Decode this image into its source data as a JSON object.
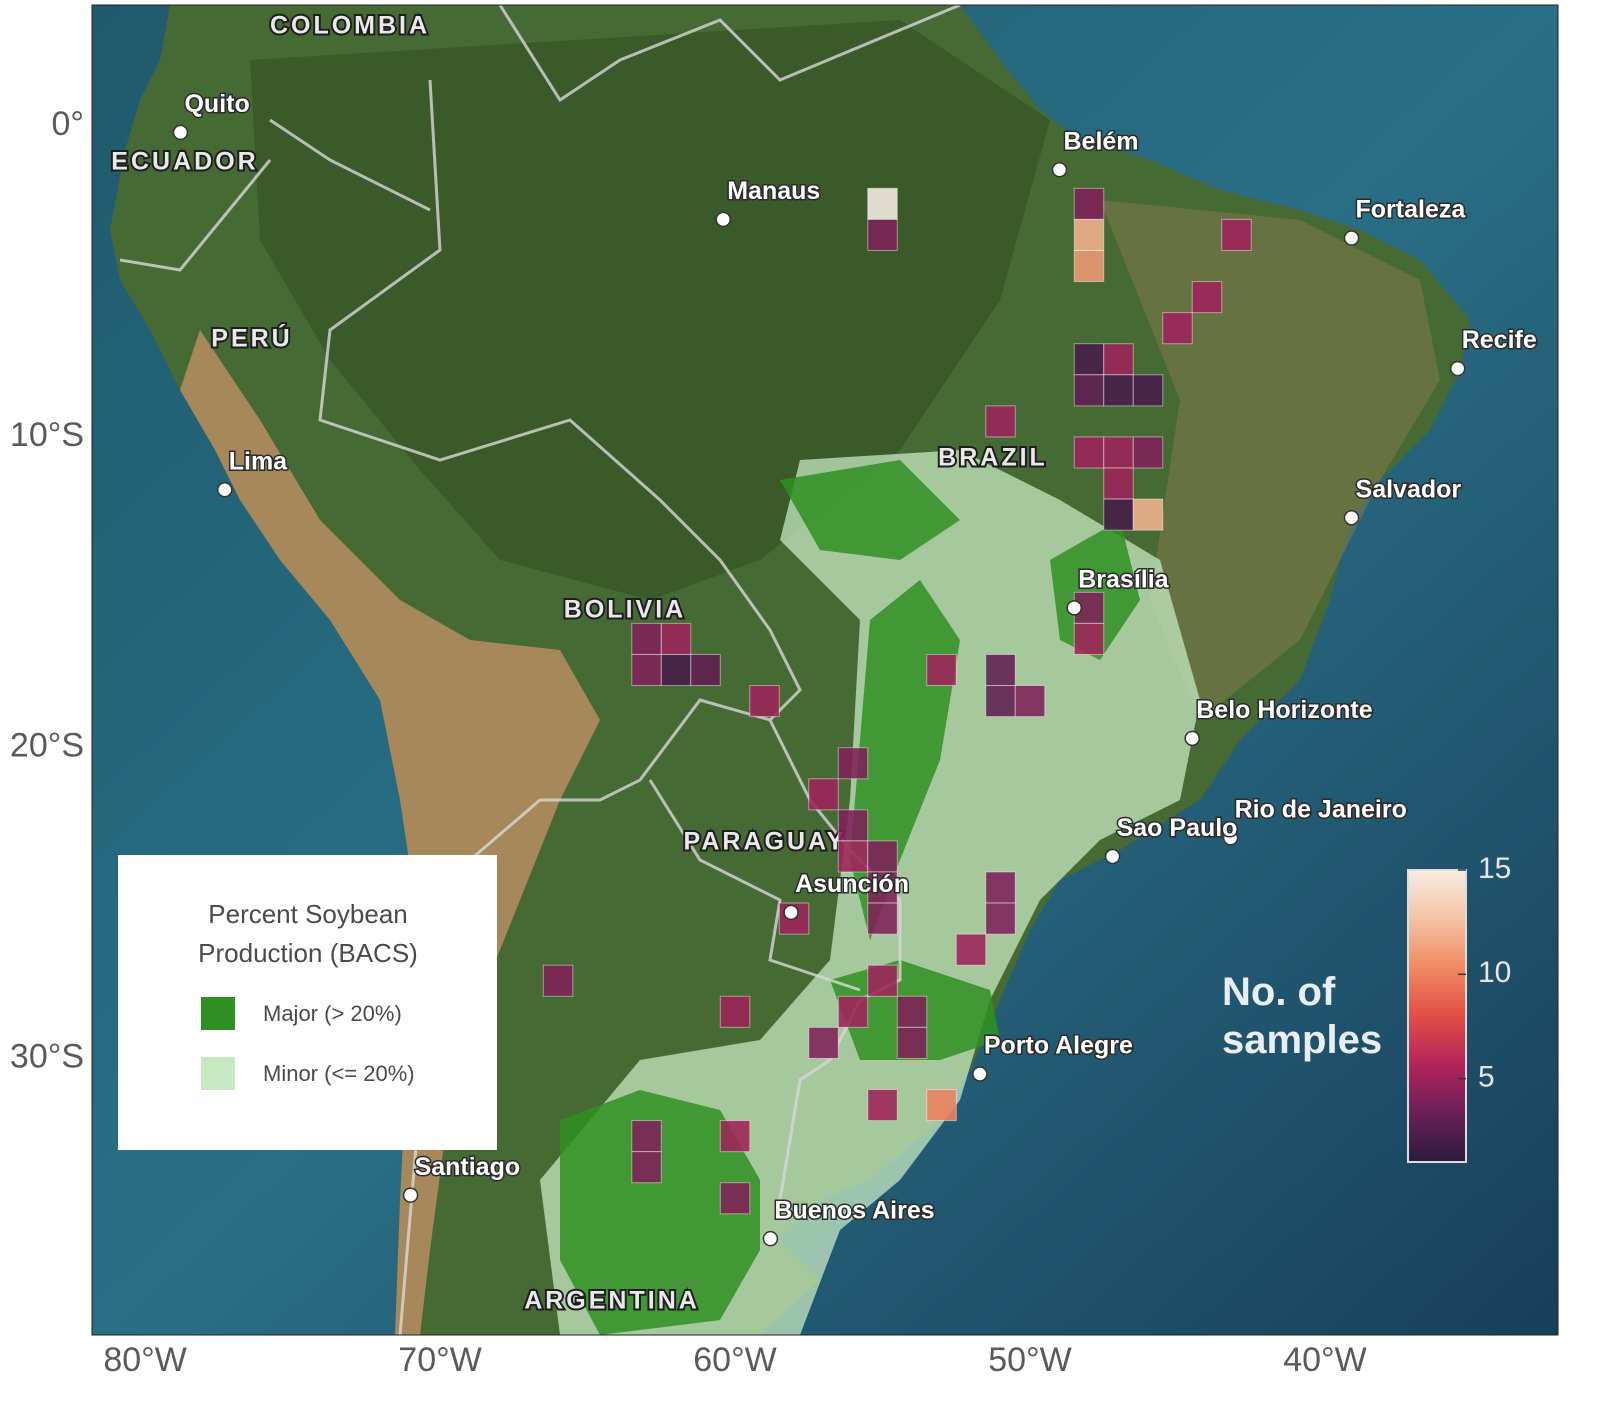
{
  "map": {
    "xlim": [
      -81.8,
      -32.1
    ],
    "ylim": [
      -38.9,
      3.9
    ],
    "xticks": [
      {
        "value": -80,
        "label": "80°W"
      },
      {
        "value": -70,
        "label": "70°W"
      },
      {
        "value": -60,
        "label": "60°W"
      },
      {
        "value": -50,
        "label": "50°W"
      },
      {
        "value": -40,
        "label": "40°W"
      }
    ],
    "yticks": [
      {
        "value": 0,
        "label": "0°"
      },
      {
        "value": -10,
        "label": "10°S"
      },
      {
        "value": -20,
        "label": "20°S"
      },
      {
        "value": -30,
        "label": "30°S"
      }
    ],
    "countries": [
      "COLOMBIA",
      "ECUADOR",
      "PERÚ",
      "BOLIVIA",
      "BRAZIL",
      "PARAGUAY",
      "ARGENTINA"
    ],
    "cities": [
      {
        "name": "Quito",
        "lon": -78.8,
        "lat": -0.2
      },
      {
        "name": "Manaus",
        "lon": -60.4,
        "lat": -3.0
      },
      {
        "name": "Belém",
        "lon": -49.0,
        "lat": -1.4
      },
      {
        "name": "Fortaleza",
        "lon": -39.1,
        "lat": -3.6
      },
      {
        "name": "Recife",
        "lon": -35.5,
        "lat": -7.8
      },
      {
        "name": "Salvador",
        "lon": -39.1,
        "lat": -12.6
      },
      {
        "name": "Lima",
        "lon": -77.3,
        "lat": -11.7
      },
      {
        "name": "Brasília",
        "lon": -48.5,
        "lat": -15.5
      },
      {
        "name": "Belo Horizonte",
        "lon": -44.5,
        "lat": -19.7
      },
      {
        "name": "Rio de Janeiro",
        "lon": -43.2,
        "lat": -22.9
      },
      {
        "name": "Sao Paulo",
        "lon": -47.2,
        "lat": -23.5
      },
      {
        "name": "Asunción",
        "lon": -58.1,
        "lat": -25.3
      },
      {
        "name": "Porto Alegre",
        "lon": -51.7,
        "lat": -30.5
      },
      {
        "name": "Santiago",
        "lon": -71.0,
        "lat": -34.4
      },
      {
        "name": "Buenos Aires",
        "lon": -58.8,
        "lat": -35.8
      }
    ],
    "cells": [
      {
        "lon": -55,
        "lat": -2.5,
        "samples": 15
      },
      {
        "lon": -55,
        "lat": -3.5,
        "samples": 4
      },
      {
        "lon": -48,
        "lat": -2.5,
        "samples": 4
      },
      {
        "lon": -48,
        "lat": -3.5,
        "samples": 12
      },
      {
        "lon": -48,
        "lat": -4.5,
        "samples": 11
      },
      {
        "lon": -43,
        "lat": -3.5,
        "samples": 5
      },
      {
        "lon": -44,
        "lat": -5.5,
        "samples": 5
      },
      {
        "lon": -45,
        "lat": -6.5,
        "samples": 5
      },
      {
        "lon": -48,
        "lat": -7.5,
        "samples": 2
      },
      {
        "lon": -47,
        "lat": -7.5,
        "samples": 5
      },
      {
        "lon": -48,
        "lat": -8.5,
        "samples": 3
      },
      {
        "lon": -47,
        "lat": -8.5,
        "samples": 2
      },
      {
        "lon": -46,
        "lat": -8.5,
        "samples": 2
      },
      {
        "lon": -51,
        "lat": -9.5,
        "samples": 5
      },
      {
        "lon": -48,
        "lat": -10.5,
        "samples": 5
      },
      {
        "lon": -47,
        "lat": -10.5,
        "samples": 5
      },
      {
        "lon": -46,
        "lat": -10.5,
        "samples": 4
      },
      {
        "lon": -47,
        "lat": -11.5,
        "samples": 5
      },
      {
        "lon": -47,
        "lat": -12.5,
        "samples": 2
      },
      {
        "lon": -46,
        "lat": -12.5,
        "samples": 12
      },
      {
        "lon": -48,
        "lat": -15.5,
        "samples": 4
      },
      {
        "lon": -48,
        "lat": -16.5,
        "samples": 5
      },
      {
        "lon": -63,
        "lat": -16.5,
        "samples": 4
      },
      {
        "lon": -62,
        "lat": -16.5,
        "samples": 5
      },
      {
        "lon": -63,
        "lat": -17.5,
        "samples": 4
      },
      {
        "lon": -62,
        "lat": -17.5,
        "samples": 2
      },
      {
        "lon": -61,
        "lat": -17.5,
        "samples": 3
      },
      {
        "lon": -53,
        "lat": -17.5,
        "samples": 5
      },
      {
        "lon": -51,
        "lat": -17.5,
        "samples": 3
      },
      {
        "lon": -51,
        "lat": -18.5,
        "samples": 3
      },
      {
        "lon": -50,
        "lat": -18.5,
        "samples": 4
      },
      {
        "lon": -59,
        "lat": -18.5,
        "samples": 5
      },
      {
        "lon": -56,
        "lat": -20.5,
        "samples": 4
      },
      {
        "lon": -57,
        "lat": -21.5,
        "samples": 5
      },
      {
        "lon": -56,
        "lat": -22.5,
        "samples": 4
      },
      {
        "lon": -56,
        "lat": -23.5,
        "samples": 5
      },
      {
        "lon": -55,
        "lat": -23.5,
        "samples": 4
      },
      {
        "lon": -55,
        "lat": -24.5,
        "samples": 4
      },
      {
        "lon": -55,
        "lat": -25.5,
        "samples": 4
      },
      {
        "lon": -58,
        "lat": -25.5,
        "samples": 5
      },
      {
        "lon": -51,
        "lat": -24.5,
        "samples": 4
      },
      {
        "lon": -51,
        "lat": -25.5,
        "samples": 4
      },
      {
        "lon": -52,
        "lat": -26.5,
        "samples": 5
      },
      {
        "lon": -66,
        "lat": -27.5,
        "samples": 4
      },
      {
        "lon": -55,
        "lat": -27.5,
        "samples": 5
      },
      {
        "lon": -56,
        "lat": -28.5,
        "samples": 5
      },
      {
        "lon": -54,
        "lat": -28.5,
        "samples": 4
      },
      {
        "lon": -54,
        "lat": -29.5,
        "samples": 4
      },
      {
        "lon": -57,
        "lat": -29.5,
        "samples": 4
      },
      {
        "lon": -60,
        "lat": -28.5,
        "samples": 5
      },
      {
        "lon": -55,
        "lat": -31.5,
        "samples": 5
      },
      {
        "lon": -53,
        "lat": -31.5,
        "samples": 10
      },
      {
        "lon": -63,
        "lat": -32.5,
        "samples": 4
      },
      {
        "lon": -63,
        "lat": -33.5,
        "samples": 4
      },
      {
        "lon": -60,
        "lat": -32.5,
        "samples": 5
      },
      {
        "lon": -60,
        "lat": -34.5,
        "samples": 4
      }
    ],
    "legend": {
      "title": "Percent Soybean Production (BACS)",
      "items": [
        {
          "label": "Major (> 20%)",
          "color": "#2f8f22"
        },
        {
          "label": "Minor (<= 20%)",
          "color": "#c6e8c2"
        }
      ]
    },
    "colorbar": {
      "title": "No. of samples",
      "lim": [
        1,
        15
      ],
      "ticks": [
        5,
        10,
        15
      ],
      "colors": [
        "#2a1b3d",
        "#6b1f58",
        "#b3245a",
        "#e24d45",
        "#f08a62",
        "#f4c3a3",
        "#f6ede4"
      ]
    }
  }
}
